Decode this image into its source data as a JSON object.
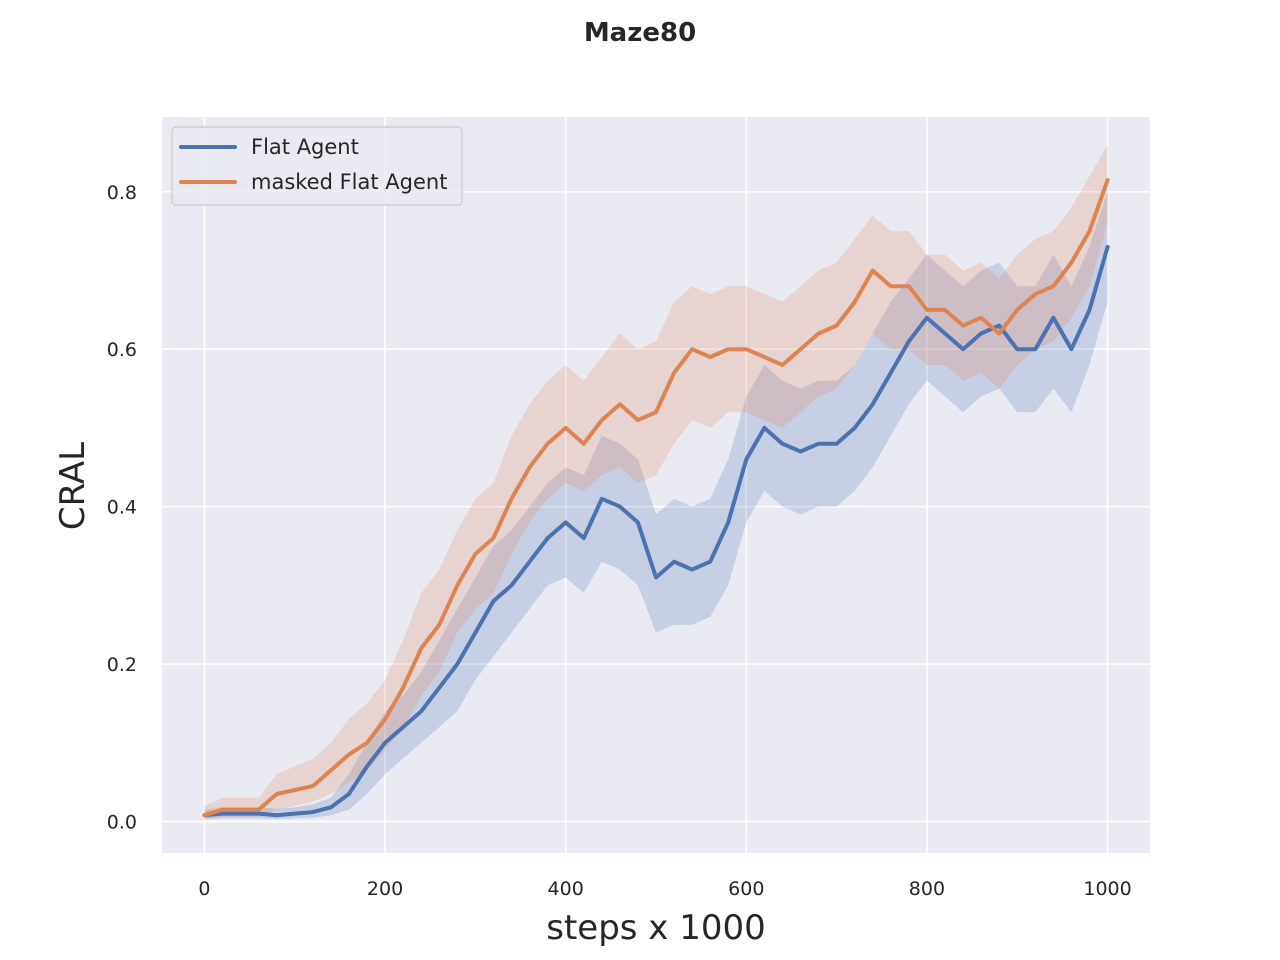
{
  "chart_data": {
    "type": "line",
    "title": "Maze80",
    "xlabel": "steps x 1000",
    "ylabel": "CRAL",
    "xlim": [
      -47,
      1047
    ],
    "ylim": [
      -0.04,
      0.895
    ],
    "xticks": [
      0,
      200,
      400,
      600,
      800,
      1000
    ],
    "yticks": [
      0.0,
      0.2,
      0.4,
      0.6,
      0.8
    ],
    "xtick_labels": [
      "0",
      "200",
      "400",
      "600",
      "800",
      "1000"
    ],
    "ytick_labels": [
      "0.0",
      "0.2",
      "0.4",
      "0.6",
      "0.8"
    ],
    "grid": true,
    "legend_position": "top-left",
    "background_color": "#eaeaf2",
    "series": [
      {
        "name": "Flat Agent",
        "color": "#4c72b0",
        "x": [
          0,
          20,
          40,
          60,
          80,
          100,
          120,
          140,
          160,
          180,
          200,
          220,
          240,
          260,
          280,
          300,
          320,
          340,
          360,
          380,
          400,
          420,
          440,
          460,
          480,
          500,
          520,
          540,
          560,
          580,
          600,
          620,
          640,
          660,
          680,
          700,
          720,
          740,
          760,
          780,
          800,
          820,
          840,
          860,
          880,
          900,
          920,
          940,
          960,
          980,
          1000
        ],
        "y": [
          0.008,
          0.01,
          0.01,
          0.01,
          0.008,
          0.01,
          0.012,
          0.018,
          0.035,
          0.07,
          0.1,
          0.12,
          0.14,
          0.17,
          0.2,
          0.24,
          0.28,
          0.3,
          0.33,
          0.36,
          0.38,
          0.36,
          0.41,
          0.4,
          0.38,
          0.31,
          0.33,
          0.32,
          0.33,
          0.38,
          0.46,
          0.5,
          0.48,
          0.47,
          0.48,
          0.48,
          0.5,
          0.53,
          0.57,
          0.61,
          0.64,
          0.62,
          0.6,
          0.62,
          0.63,
          0.6,
          0.6,
          0.64,
          0.6,
          0.65,
          0.73
        ],
        "lower": [
          0.003,
          0.004,
          0.004,
          0.004,
          0.003,
          0.004,
          0.005,
          0.008,
          0.015,
          0.035,
          0.06,
          0.08,
          0.1,
          0.12,
          0.14,
          0.18,
          0.21,
          0.24,
          0.27,
          0.3,
          0.31,
          0.29,
          0.33,
          0.32,
          0.3,
          0.24,
          0.25,
          0.25,
          0.26,
          0.3,
          0.38,
          0.42,
          0.4,
          0.39,
          0.4,
          0.4,
          0.42,
          0.45,
          0.49,
          0.53,
          0.56,
          0.54,
          0.52,
          0.54,
          0.55,
          0.52,
          0.52,
          0.55,
          0.52,
          0.58,
          0.66
        ],
        "upper": [
          0.015,
          0.018,
          0.018,
          0.018,
          0.016,
          0.018,
          0.022,
          0.03,
          0.06,
          0.1,
          0.14,
          0.16,
          0.19,
          0.23,
          0.27,
          0.31,
          0.35,
          0.37,
          0.4,
          0.43,
          0.45,
          0.44,
          0.49,
          0.48,
          0.46,
          0.39,
          0.41,
          0.4,
          0.41,
          0.46,
          0.54,
          0.58,
          0.56,
          0.55,
          0.56,
          0.56,
          0.58,
          0.62,
          0.66,
          0.69,
          0.72,
          0.7,
          0.68,
          0.7,
          0.71,
          0.68,
          0.68,
          0.72,
          0.68,
          0.73,
          0.8
        ]
      },
      {
        "name": "masked Flat Agent",
        "color": "#dd8452",
        "x": [
          0,
          20,
          40,
          60,
          80,
          100,
          120,
          140,
          160,
          180,
          200,
          220,
          240,
          260,
          280,
          300,
          320,
          340,
          360,
          380,
          400,
          420,
          440,
          460,
          480,
          500,
          520,
          540,
          560,
          580,
          600,
          620,
          640,
          660,
          680,
          700,
          720,
          740,
          760,
          780,
          800,
          820,
          840,
          860,
          880,
          900,
          920,
          940,
          960,
          980,
          1000
        ],
        "y": [
          0.008,
          0.015,
          0.015,
          0.015,
          0.035,
          0.04,
          0.045,
          0.065,
          0.085,
          0.1,
          0.13,
          0.17,
          0.22,
          0.25,
          0.3,
          0.34,
          0.36,
          0.41,
          0.45,
          0.48,
          0.5,
          0.48,
          0.51,
          0.53,
          0.51,
          0.52,
          0.57,
          0.6,
          0.59,
          0.6,
          0.6,
          0.59,
          0.58,
          0.6,
          0.62,
          0.63,
          0.66,
          0.7,
          0.68,
          0.68,
          0.65,
          0.65,
          0.63,
          0.64,
          0.62,
          0.65,
          0.67,
          0.68,
          0.71,
          0.75,
          0.815
        ],
        "lower": [
          0.003,
          0.006,
          0.006,
          0.006,
          0.015,
          0.02,
          0.025,
          0.035,
          0.05,
          0.065,
          0.09,
          0.12,
          0.16,
          0.19,
          0.24,
          0.27,
          0.29,
          0.34,
          0.38,
          0.41,
          0.43,
          0.42,
          0.44,
          0.45,
          0.43,
          0.44,
          0.48,
          0.51,
          0.5,
          0.52,
          0.52,
          0.51,
          0.5,
          0.52,
          0.54,
          0.55,
          0.58,
          0.62,
          0.6,
          0.6,
          0.58,
          0.58,
          0.56,
          0.57,
          0.55,
          0.58,
          0.6,
          0.61,
          0.64,
          0.68,
          0.76
        ],
        "upper": [
          0.02,
          0.03,
          0.03,
          0.03,
          0.06,
          0.07,
          0.08,
          0.1,
          0.13,
          0.15,
          0.18,
          0.23,
          0.29,
          0.32,
          0.37,
          0.41,
          0.43,
          0.49,
          0.53,
          0.56,
          0.58,
          0.56,
          0.59,
          0.62,
          0.6,
          0.61,
          0.66,
          0.68,
          0.67,
          0.68,
          0.68,
          0.67,
          0.66,
          0.68,
          0.7,
          0.71,
          0.74,
          0.77,
          0.75,
          0.75,
          0.72,
          0.72,
          0.7,
          0.71,
          0.69,
          0.72,
          0.74,
          0.75,
          0.78,
          0.82,
          0.86
        ]
      }
    ]
  }
}
